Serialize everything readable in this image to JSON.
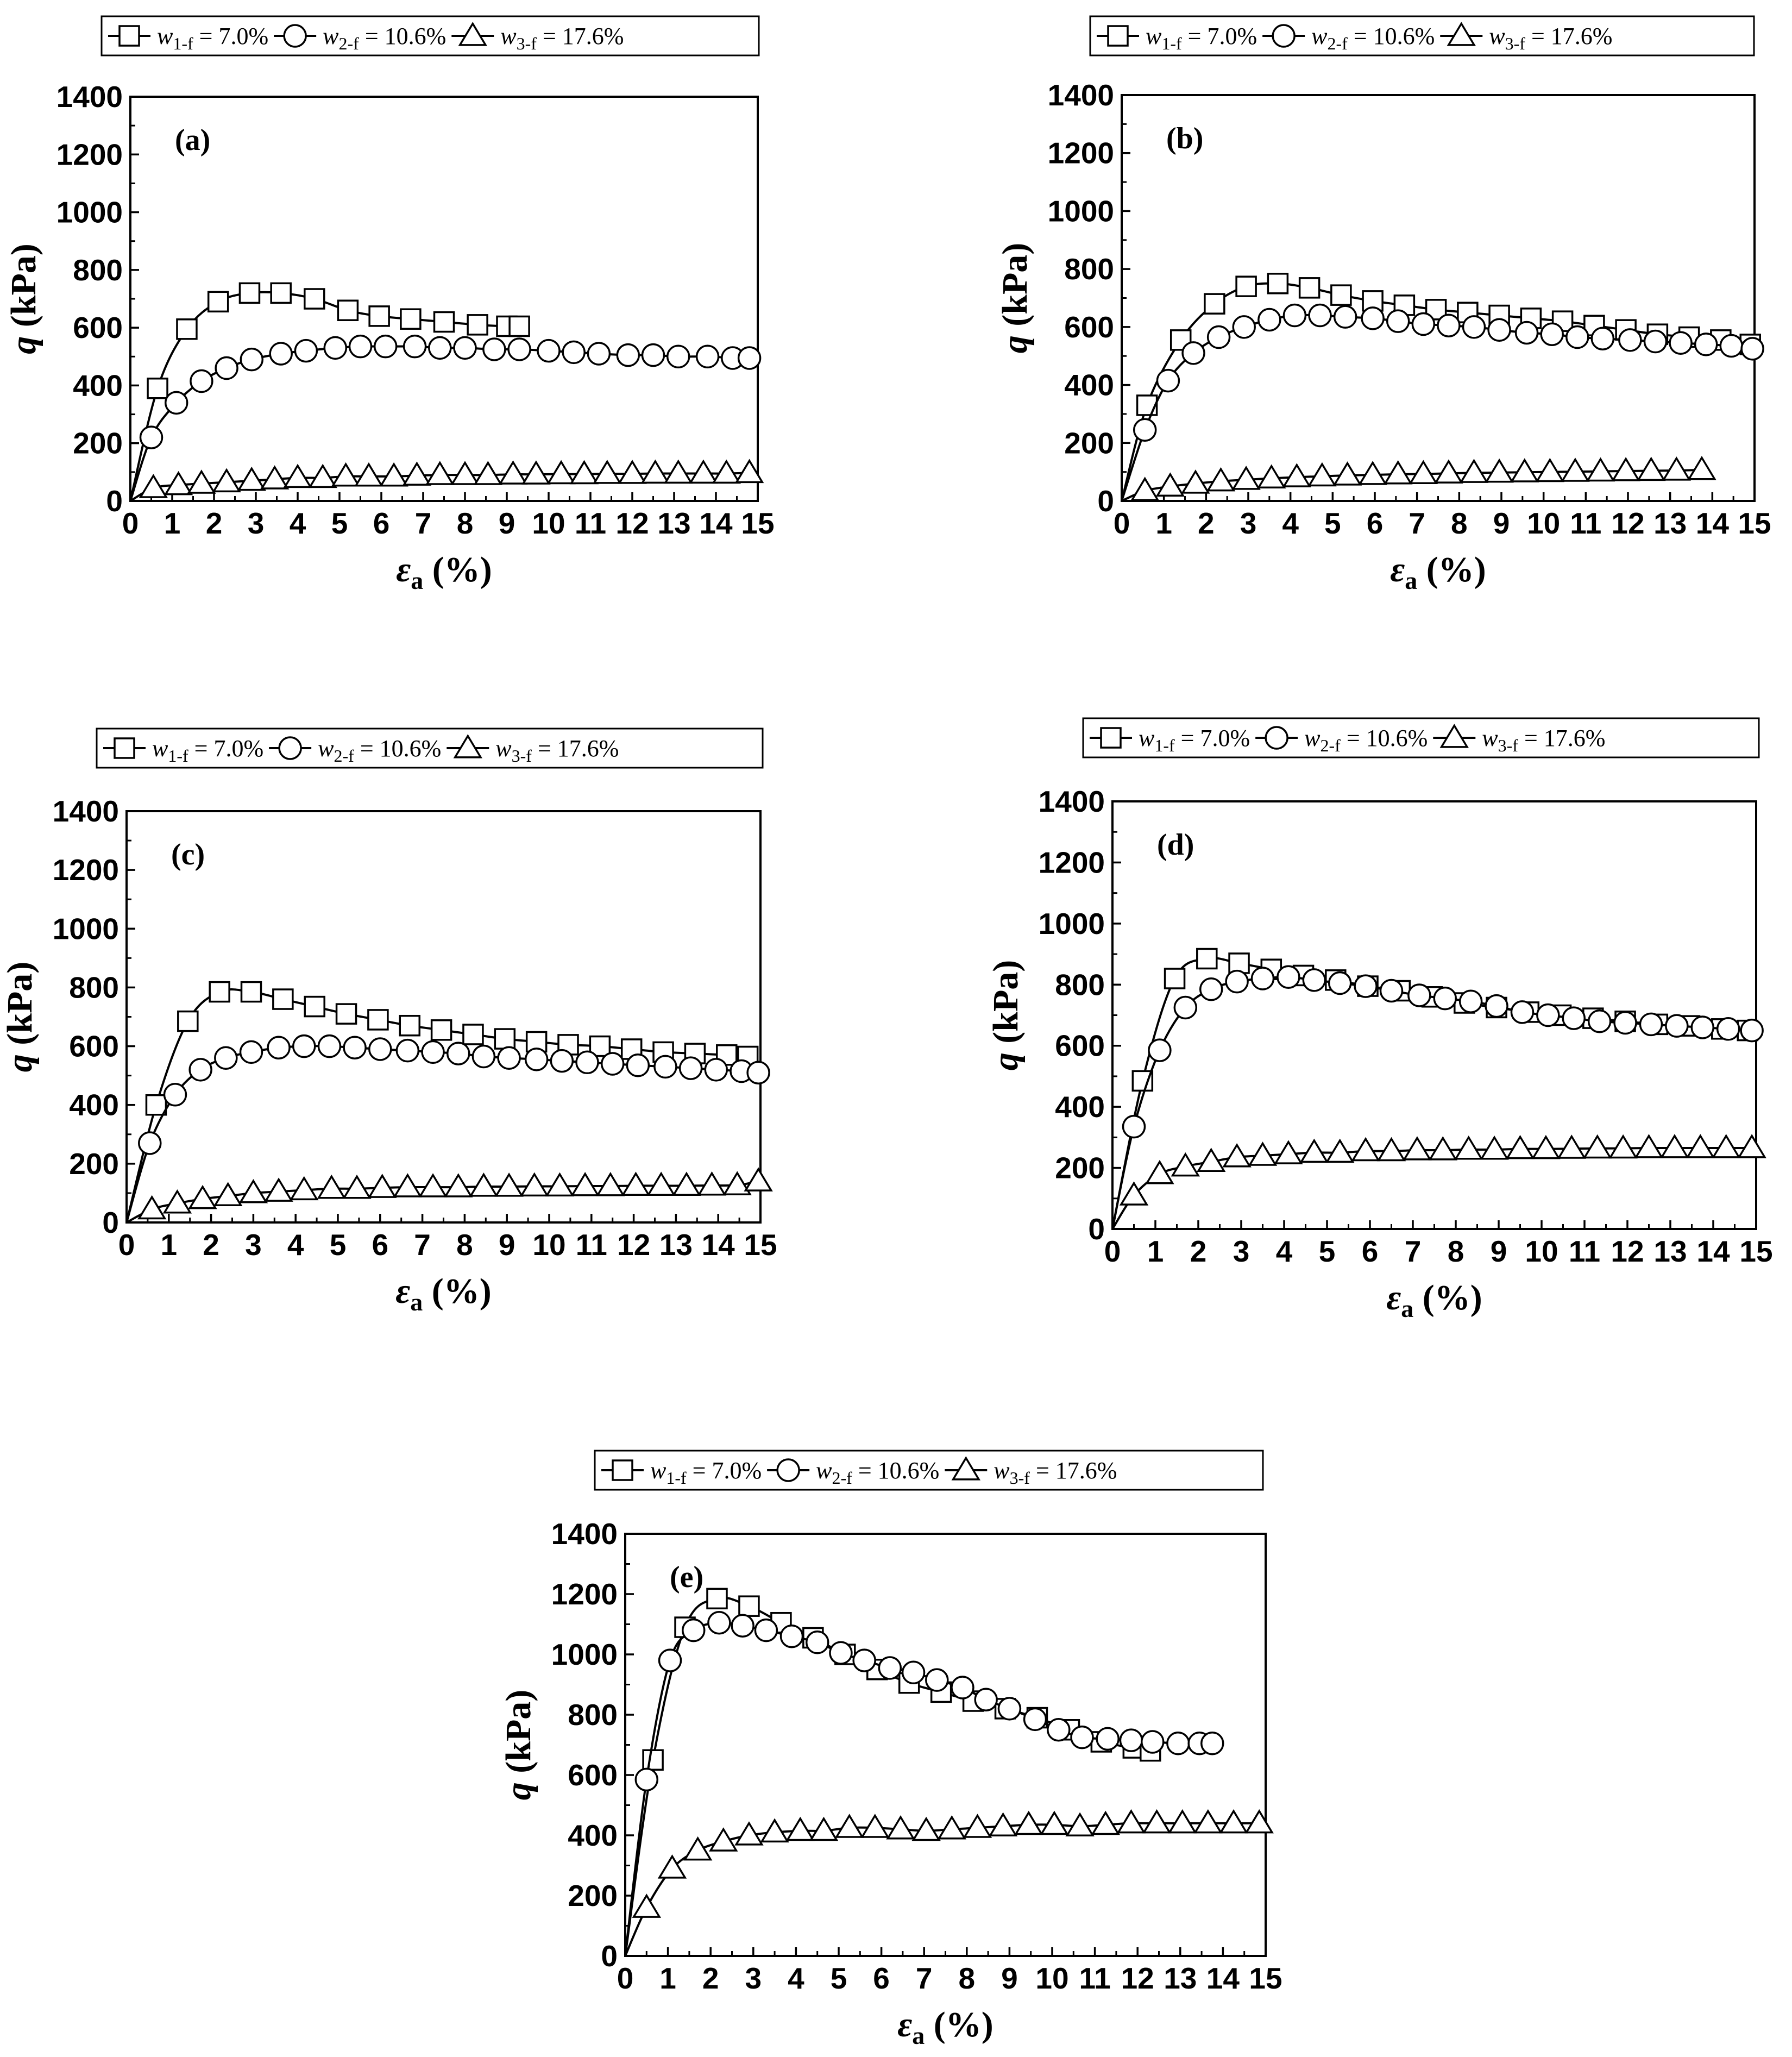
{
  "chart_data": [
    {
      "type": "line",
      "panel_label": "(a)",
      "xlabel": "εa (%)",
      "ylabel": "q (kPa)",
      "xlim": [
        0,
        15
      ],
      "ylim": [
        0,
        1400
      ],
      "xticks": [
        "0",
        "1",
        "2",
        "3",
        "4",
        "5",
        "6",
        "7",
        "8",
        "9",
        "10",
        "11",
        "12",
        "13",
        "14",
        "15"
      ],
      "yticks": [
        "0",
        "200",
        "400",
        "600",
        "800",
        "1000",
        "1200",
        "1400"
      ],
      "legend": [
        "w1-f = 7.0%",
        "w2-f = 10.6%",
        "w3-f = 17.6%"
      ],
      "series": [
        {
          "name": "w1-f = 7.0%",
          "marker": "square",
          "x": [
            0,
            0.65,
            1.35,
            2.1,
            2.85,
            3.6,
            4.4,
            5.2,
            5.95,
            6.7,
            7.5,
            8.3,
            9.0,
            9.3
          ],
          "y": [
            0,
            390,
            595,
            690,
            720,
            720,
            700,
            660,
            640,
            630,
            620,
            610,
            605,
            605
          ]
        },
        {
          "name": "w2-f = 10.6%",
          "marker": "circle",
          "x": [
            0,
            0.5,
            1.1,
            1.7,
            2.3,
            2.9,
            3.6,
            4.2,
            4.9,
            5.5,
            6.1,
            6.8,
            7.4,
            8.0,
            8.7,
            9.3,
            10.0,
            10.6,
            11.2,
            11.9,
            12.5,
            13.1,
            13.8,
            14.4,
            14.8
          ],
          "y": [
            0,
            220,
            340,
            415,
            460,
            490,
            510,
            520,
            530,
            535,
            535,
            535,
            530,
            530,
            525,
            525,
            520,
            515,
            510,
            505,
            505,
            500,
            500,
            495,
            495
          ]
        },
        {
          "name": "w3-f = 17.6%",
          "marker": "triangle",
          "x": [
            0,
            0.55,
            1.15,
            1.7,
            2.3,
            2.9,
            3.45,
            4.0,
            4.6,
            5.15,
            5.7,
            6.3,
            6.85,
            7.4,
            8.0,
            8.55,
            9.15,
            9.7,
            10.3,
            10.85,
            11.4,
            12.0,
            12.55,
            13.1,
            13.7,
            14.25,
            14.8
          ],
          "y": [
            0,
            45,
            55,
            60,
            65,
            70,
            75,
            80,
            80,
            85,
            85,
            85,
            88,
            90,
            90,
            90,
            92,
            92,
            93,
            93,
            94,
            94,
            95,
            95,
            95,
            95,
            97
          ]
        }
      ]
    },
    {
      "type": "line",
      "panel_label": "(b)",
      "xlabel": "εa (%)",
      "ylabel": "q (kPa)",
      "xlim": [
        0,
        15
      ],
      "ylim": [
        0,
        1400
      ],
      "xticks": [
        "0",
        "1",
        "2",
        "3",
        "4",
        "5",
        "6",
        "7",
        "8",
        "9",
        "10",
        "11",
        "12",
        "13",
        "14",
        "15"
      ],
      "yticks": [
        "0",
        "200",
        "400",
        "600",
        "800",
        "1000",
        "1200",
        "1400"
      ],
      "legend": [
        "w1-f = 7.0%",
        "w2-f = 10.6%",
        "w3-f = 17.6%"
      ],
      "series": [
        {
          "name": "w1-f = 7.0%",
          "marker": "square",
          "x": [
            0,
            0.6,
            1.4,
            2.2,
            2.95,
            3.7,
            4.45,
            5.2,
            5.95,
            6.7,
            7.45,
            8.2,
            8.95,
            9.7,
            10.45,
            11.2,
            11.95,
            12.7,
            13.45,
            14.2,
            14.9
          ],
          "y": [
            0,
            330,
            555,
            680,
            740,
            750,
            735,
            710,
            690,
            675,
            660,
            650,
            640,
            630,
            620,
            605,
            590,
            575,
            565,
            555,
            540
          ]
        },
        {
          "name": "w2-f = 10.6%",
          "marker": "circle",
          "x": [
            0,
            0.55,
            1.1,
            1.7,
            2.3,
            2.9,
            3.5,
            4.1,
            4.7,
            5.3,
            5.95,
            6.55,
            7.15,
            7.75,
            8.35,
            8.95,
            9.6,
            10.2,
            10.8,
            11.4,
            12.05,
            12.65,
            13.25,
            13.85,
            14.45,
            14.95
          ],
          "y": [
            0,
            245,
            415,
            510,
            565,
            600,
            625,
            640,
            640,
            635,
            630,
            620,
            610,
            605,
            600,
            590,
            580,
            575,
            565,
            560,
            555,
            550,
            545,
            540,
            535,
            525
          ]
        },
        {
          "name": "w3-f = 17.6%",
          "marker": "triangle",
          "x": [
            0,
            0.55,
            1.15,
            1.75,
            2.35,
            2.95,
            3.55,
            4.15,
            4.75,
            5.35,
            5.95,
            6.55,
            7.15,
            7.75,
            8.35,
            8.95,
            9.55,
            10.15,
            10.75,
            11.35,
            11.95,
            12.55,
            13.15,
            13.75
          ],
          "y": [
            0,
            35,
            50,
            60,
            68,
            73,
            78,
            82,
            85,
            88,
            90,
            92,
            93,
            95,
            97,
            98,
            99,
            100,
            101,
            102,
            103,
            104,
            105,
            107
          ]
        }
      ]
    },
    {
      "type": "line",
      "panel_label": "(c)",
      "xlabel": "εa (%)",
      "ylabel": "q (kPa)",
      "xlim": [
        0,
        15
      ],
      "ylim": [
        0,
        1400
      ],
      "xticks": [
        "0",
        "1",
        "2",
        "3",
        "4",
        "5",
        "6",
        "7",
        "8",
        "9",
        "10",
        "11",
        "12",
        "13",
        "14",
        "15"
      ],
      "yticks": [
        "0",
        "200",
        "400",
        "600",
        "800",
        "1000",
        "1200",
        "1400"
      ],
      "legend": [
        "w1-f = 7.0%",
        "w2-f = 10.6%",
        "w3-f = 17.6%"
      ],
      "series": [
        {
          "name": "w1-f = 7.0%",
          "marker": "square",
          "x": [
            0,
            0.7,
            1.45,
            2.2,
            2.95,
            3.7,
            4.45,
            5.2,
            5.95,
            6.7,
            7.45,
            8.2,
            8.95,
            9.7,
            10.45,
            11.2,
            11.95,
            12.7,
            13.45,
            14.2,
            14.7
          ],
          "y": [
            0,
            400,
            685,
            785,
            785,
            760,
            735,
            710,
            690,
            670,
            655,
            640,
            625,
            615,
            605,
            600,
            590,
            580,
            575,
            570,
            565
          ]
        },
        {
          "name": "w2-f = 10.6%",
          "marker": "circle",
          "x": [
            0,
            0.55,
            1.15,
            1.75,
            2.35,
            2.95,
            3.6,
            4.2,
            4.8,
            5.4,
            6.0,
            6.65,
            7.25,
            7.85,
            8.45,
            9.05,
            9.7,
            10.3,
            10.9,
            11.5,
            12.1,
            12.75,
            13.35,
            13.95,
            14.55,
            14.95
          ],
          "y": [
            0,
            270,
            435,
            520,
            560,
            580,
            595,
            600,
            600,
            595,
            590,
            585,
            580,
            575,
            565,
            560,
            555,
            550,
            545,
            540,
            535,
            530,
            525,
            520,
            515,
            510
          ]
        },
        {
          "name": "w3-f = 17.6%",
          "marker": "triangle",
          "x": [
            0,
            0.6,
            1.2,
            1.8,
            2.4,
            3.0,
            3.6,
            4.2,
            4.85,
            5.45,
            6.05,
            6.65,
            7.25,
            7.85,
            8.45,
            9.05,
            9.65,
            10.25,
            10.85,
            11.45,
            12.05,
            12.65,
            13.25,
            13.85,
            14.45,
            14.95
          ],
          "y": [
            0,
            45,
            65,
            80,
            90,
            100,
            105,
            110,
            115,
            115,
            118,
            120,
            120,
            120,
            122,
            122,
            123,
            123,
            124,
            124,
            125,
            125,
            125,
            126,
            127,
            140
          ]
        }
      ]
    },
    {
      "type": "line",
      "panel_label": "(d)",
      "xlabel": "εa (%)",
      "ylabel": "q (kPa)",
      "xlim": [
        0,
        15
      ],
      "ylim": [
        0,
        1400
      ],
      "xticks": [
        "0",
        "1",
        "2",
        "3",
        "4",
        "5",
        "6",
        "7",
        "8",
        "9",
        "10",
        "11",
        "12",
        "13",
        "14",
        "15"
      ],
      "yticks": [
        "0",
        "200",
        "400",
        "600",
        "800",
        "1000",
        "1200",
        "1400"
      ],
      "legend": [
        "w1-f = 7.0%",
        "w2-f = 10.6%",
        "w3-f = 17.6%"
      ],
      "series": [
        {
          "name": "w1-f = 7.0%",
          "marker": "square",
          "x": [
            0,
            0.7,
            1.45,
            2.2,
            2.95,
            3.7,
            4.45,
            5.2,
            5.95,
            6.7,
            7.45,
            8.2,
            8.95,
            9.7,
            10.45,
            11.2,
            11.95,
            12.7,
            13.45,
            14.2,
            14.8
          ],
          "y": [
            0,
            485,
            820,
            885,
            870,
            850,
            830,
            815,
            795,
            780,
            760,
            740,
            725,
            710,
            700,
            690,
            680,
            670,
            665,
            655,
            650
          ]
        },
        {
          "name": "w2-f = 10.6%",
          "marker": "circle",
          "x": [
            0,
            0.5,
            1.1,
            1.7,
            2.3,
            2.9,
            3.5,
            4.1,
            4.7,
            5.3,
            5.9,
            6.5,
            7.15,
            7.75,
            8.35,
            8.95,
            9.55,
            10.15,
            10.75,
            11.35,
            11.95,
            12.55,
            13.15,
            13.75,
            14.35,
            14.9
          ],
          "y": [
            0,
            335,
            585,
            725,
            785,
            810,
            820,
            825,
            815,
            805,
            795,
            780,
            765,
            755,
            745,
            730,
            710,
            700,
            690,
            680,
            675,
            670,
            665,
            660,
            655,
            650
          ]
        },
        {
          "name": "w3-f = 17.6%",
          "marker": "triangle",
          "x": [
            0,
            0.5,
            1.1,
            1.7,
            2.3,
            2.9,
            3.5,
            4.1,
            4.7,
            5.3,
            5.9,
            6.5,
            7.1,
            7.7,
            8.3,
            8.9,
            9.5,
            10.1,
            10.7,
            11.3,
            11.9,
            12.5,
            13.1,
            13.7,
            14.3,
            14.9
          ],
          "y": [
            0,
            110,
            180,
            205,
            220,
            235,
            240,
            245,
            250,
            250,
            255,
            255,
            258,
            258,
            260,
            260,
            262,
            262,
            263,
            264,
            264,
            265,
            265,
            265,
            265,
            265
          ]
        }
      ]
    },
    {
      "type": "line",
      "panel_label": "(e)",
      "xlabel": "εa (%)",
      "ylabel": "q (kPa)",
      "xlim": [
        0,
        15
      ],
      "ylim": [
        0,
        1400
      ],
      "xticks": [
        "0",
        "1",
        "2",
        "3",
        "4",
        "5",
        "6",
        "7",
        "8",
        "9",
        "10",
        "11",
        "12",
        "13",
        "14",
        "15"
      ],
      "yticks": [
        "0",
        "200",
        "400",
        "600",
        "800",
        "1000",
        "1200",
        "1400"
      ],
      "legend": [
        "w1-f = 7.0%",
        "w2-f = 10.6%",
        "w3-f = 17.6%"
      ],
      "series": [
        {
          "name": "w1-f = 7.0%",
          "marker": "square",
          "x": [
            0,
            0.65,
            1.4,
            2.15,
            2.9,
            3.65,
            4.4,
            5.15,
            5.9,
            6.65,
            7.4,
            8.15,
            8.9,
            9.65,
            10.4,
            11.15,
            11.9,
            12.3
          ],
          "y": [
            0,
            650,
            1090,
            1185,
            1160,
            1105,
            1055,
            1000,
            950,
            905,
            875,
            845,
            820,
            790,
            750,
            710,
            690,
            680
          ]
        },
        {
          "name": "w2-f = 10.6%",
          "marker": "circle",
          "x": [
            0,
            0.5,
            1.05,
            1.6,
            2.2,
            2.75,
            3.3,
            3.9,
            4.5,
            5.05,
            5.6,
            6.2,
            6.75,
            7.3,
            7.9,
            8.45,
            9.0,
            9.6,
            10.15,
            10.7,
            11.3,
            11.85,
            12.35,
            12.95,
            13.45,
            13.75
          ],
          "y": [
            0,
            585,
            980,
            1080,
            1105,
            1095,
            1080,
            1060,
            1040,
            1005,
            980,
            955,
            940,
            915,
            890,
            850,
            820,
            785,
            750,
            725,
            720,
            715,
            710,
            705,
            705,
            705
          ]
        },
        {
          "name": "w3-f = 17.6%",
          "marker": "triangle",
          "x": [
            0,
            0.5,
            1.1,
            1.7,
            2.3,
            2.9,
            3.5,
            4.1,
            4.65,
            5.25,
            5.85,
            6.45,
            7.05,
            7.65,
            8.25,
            8.85,
            9.45,
            10.05,
            10.65,
            11.25,
            11.85,
            12.45,
            13.05,
            13.65,
            14.25,
            14.85
          ],
          "y": [
            0,
            160,
            290,
            350,
            380,
            400,
            410,
            415,
            415,
            425,
            425,
            420,
            415,
            420,
            425,
            430,
            435,
            435,
            430,
            435,
            440,
            440,
            440,
            440,
            440,
            440
          ]
        }
      ]
    }
  ]
}
